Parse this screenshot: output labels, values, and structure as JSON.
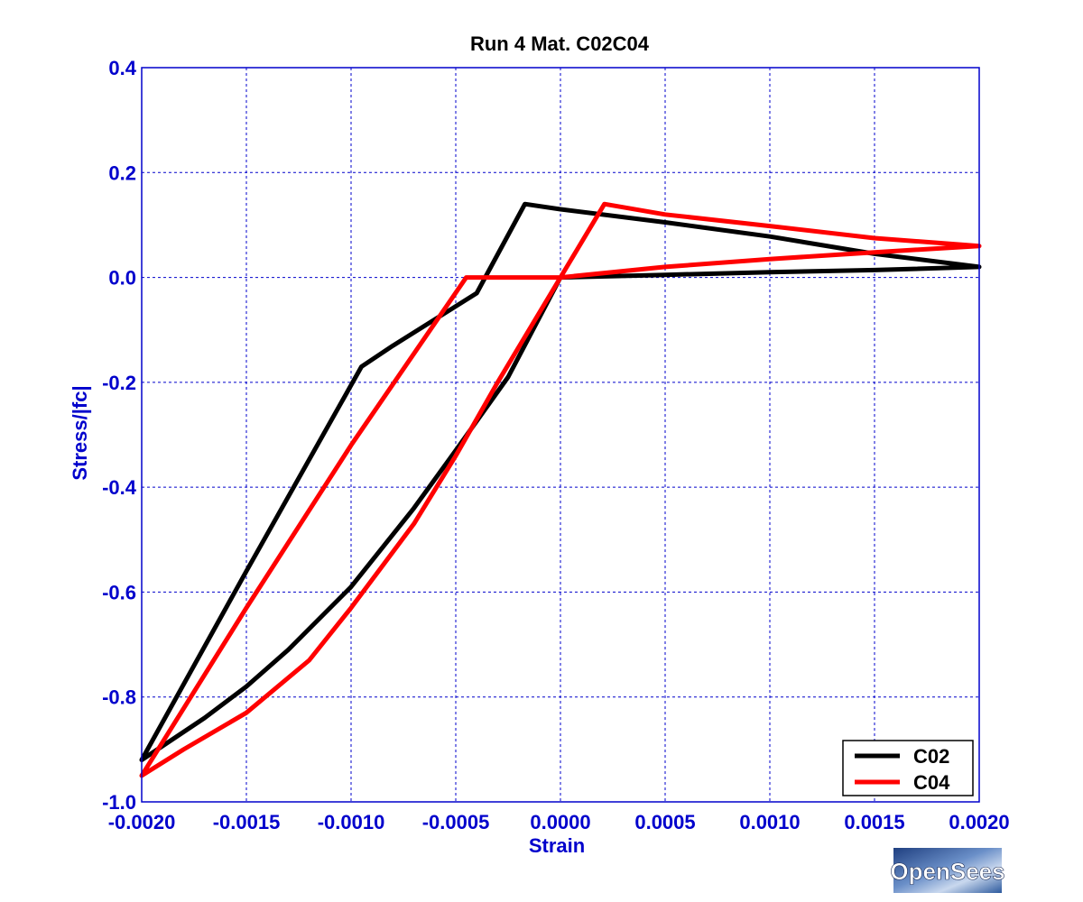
{
  "chart_data": {
    "type": "line",
    "title": "Run 4   Mat. C02C04",
    "xlabel": "Strain",
    "ylabel": "Stress/|fc|",
    "xlim": [
      -0.002,
      0.002
    ],
    "ylim": [
      -1.0,
      0.4
    ],
    "xticks": [
      -0.002,
      -0.0015,
      -0.001,
      -0.0005,
      0.0,
      0.0005,
      0.001,
      0.0015,
      0.002
    ],
    "xtick_labels": [
      "-0.0020",
      "-0.0015",
      "-0.0010",
      "-0.0005",
      "0.0000",
      "0.0005",
      "0.0010",
      "0.0015",
      "0.0020"
    ],
    "yticks": [
      0.4,
      0.2,
      0.0,
      -0.2,
      -0.4,
      -0.6,
      -0.8,
      -1.0
    ],
    "ytick_labels": [
      "0.4",
      "0.2",
      "0.0",
      "-0.2",
      "-0.4",
      "-0.6",
      "-0.8",
      "-1.0"
    ],
    "grid": true,
    "legend_position": "bottom-right",
    "axis_color": "#0000cc",
    "series": [
      {
        "name": "C02",
        "color": "#000000",
        "x": [
          0.002,
          0.0015,
          0.001,
          0.0005,
          0.0,
          -0.00017,
          -0.0004,
          -0.0008,
          -0.00095,
          -0.0015,
          -0.002,
          -0.0017,
          -0.0015,
          -0.0013,
          -0.001,
          -0.0007,
          -0.0005,
          -0.00025,
          0.0,
          0.0005,
          0.001,
          0.0015,
          0.002
        ],
        "y": [
          0.02,
          0.045,
          0.078,
          0.105,
          0.13,
          0.14,
          -0.03,
          -0.13,
          -0.17,
          -0.56,
          -0.92,
          -0.84,
          -0.78,
          -0.71,
          -0.59,
          -0.44,
          -0.33,
          -0.19,
          0.0,
          0.005,
          0.01,
          0.014,
          0.02
        ]
      },
      {
        "name": "C04",
        "color": "#ff0000",
        "x": [
          0.002,
          0.0015,
          0.001,
          0.0005,
          0.00021,
          0.0,
          -0.0003,
          -0.00045,
          -0.001,
          -0.0015,
          -0.002,
          -0.0018,
          -0.0015,
          -0.0012,
          -0.001,
          -0.0007,
          -0.0005,
          -0.0003,
          0.0,
          0.0005,
          0.001,
          0.0015,
          0.002
        ],
        "y": [
          0.06,
          0.075,
          0.098,
          0.12,
          0.14,
          0.0,
          0.0,
          0.0,
          -0.32,
          -0.63,
          -0.95,
          -0.9,
          -0.83,
          -0.73,
          -0.63,
          -0.47,
          -0.34,
          -0.2,
          0.0,
          0.02,
          0.035,
          0.048,
          0.06
        ]
      }
    ]
  },
  "logo": {
    "text": "OpenSees"
  }
}
